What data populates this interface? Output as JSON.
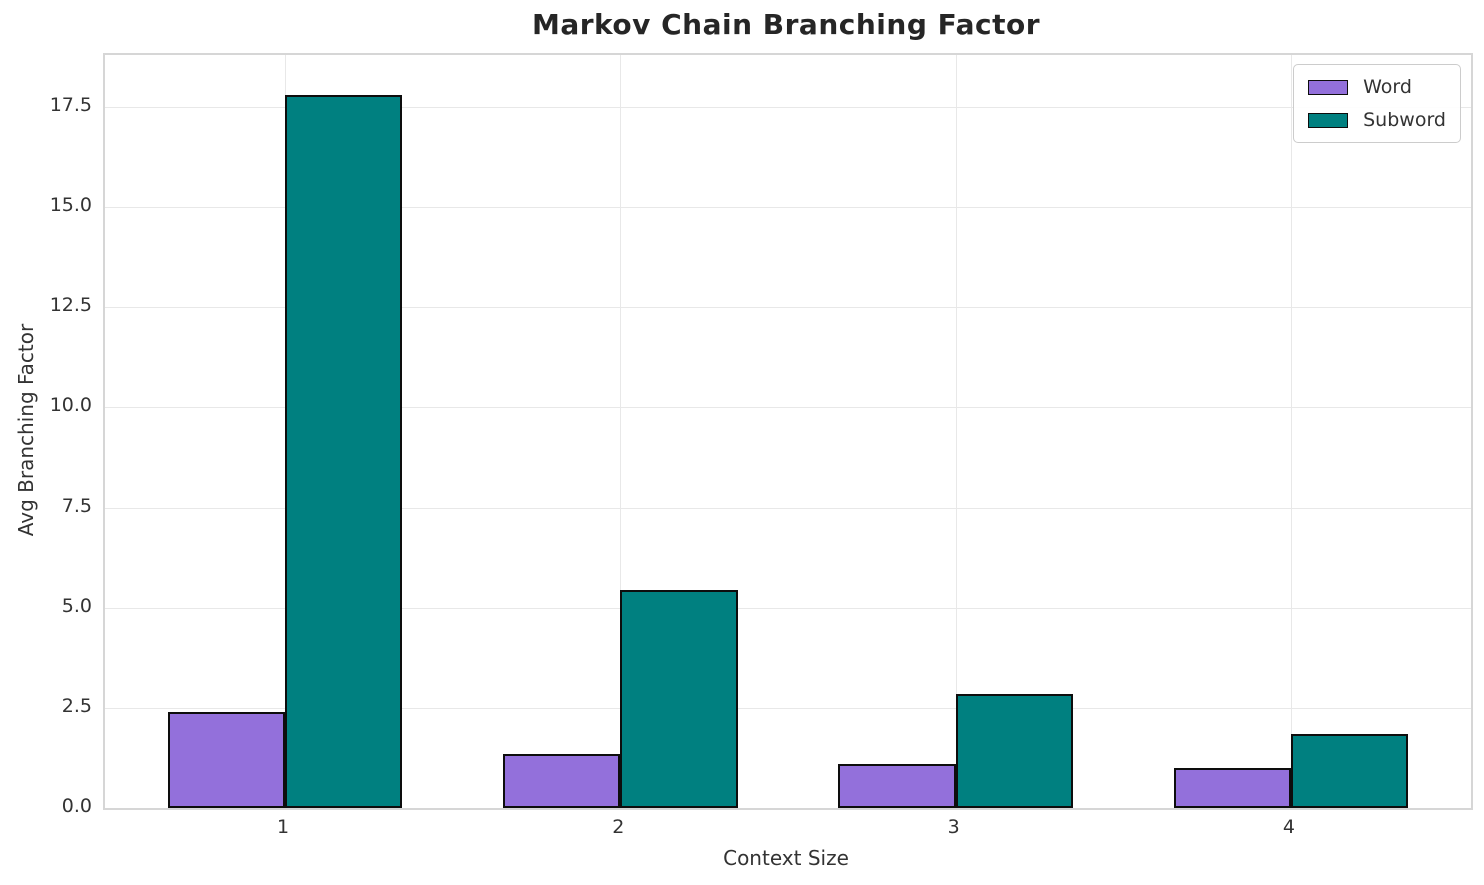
{
  "page_title": "Markov Chain Branching Factor",
  "chart_data": {
    "type": "bar",
    "title": "Markov Chain Branching Factor",
    "xlabel": "Context Size",
    "ylabel": "Avg Branching Factor",
    "categories": [
      "1",
      "2",
      "3",
      "4"
    ],
    "series": [
      {
        "name": "Word",
        "color": "#9370DB",
        "values": [
          2.4,
          1.35,
          1.1,
          1.0
        ]
      },
      {
        "name": "Subword",
        "color": "#008080",
        "values": [
          17.8,
          5.45,
          2.85,
          1.85
        ]
      }
    ],
    "yticks": [
      0,
      2.5,
      5,
      7.5,
      10,
      12.5,
      15,
      17.5
    ],
    "ytick_labels": [
      "0.0",
      "2.5",
      "5.0",
      "7.5",
      "10.0",
      "12.5",
      "15.0",
      "17.5"
    ],
    "ylim": [
      0,
      18.8
    ],
    "xlim": [
      -0.537,
      3.537
    ],
    "bar_width": 0.35,
    "grid": true,
    "legend_position": "upper-right",
    "legend_entries": [
      "Word",
      "Subword"
    ],
    "bar_edge_color": "#0d0d0d"
  },
  "colors": {
    "background": "#ffffff",
    "gridline": "#e8e8e8",
    "spine": "#d6d6d6",
    "tick_text": "#333333",
    "title_text": "#262626",
    "word_fill": "#9370DB",
    "subword_fill": "#008080"
  }
}
